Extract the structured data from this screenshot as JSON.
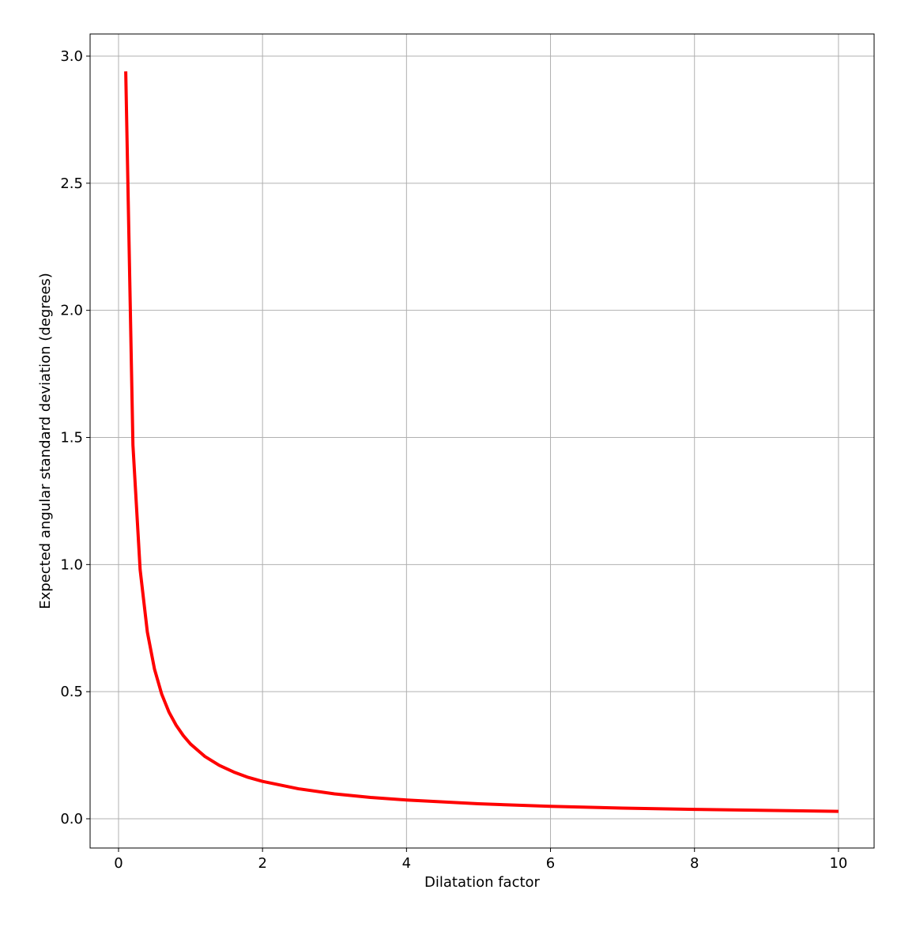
{
  "chart_data": {
    "type": "line",
    "x_label": "Dilatation factor",
    "y_label": "Expected angular standard deviation (degrees)",
    "x": [
      0.1,
      0.2,
      0.3,
      0.4,
      0.5,
      0.6,
      0.7,
      0.8,
      0.9,
      1.0,
      1.2,
      1.4,
      1.6,
      1.8,
      2,
      2.5,
      3,
      3.5,
      4,
      5,
      6,
      7,
      8,
      9,
      10
    ],
    "series": [
      {
        "color": "#ff0000",
        "values": [
          2.94,
          1.47,
          0.98,
          0.735,
          0.588,
          0.49,
          0.42,
          0.368,
          0.327,
          0.294,
          0.245,
          0.21,
          0.184,
          0.163,
          0.147,
          0.118,
          0.098,
          0.084,
          0.074,
          0.059,
          0.049,
          0.042,
          0.037,
          0.033,
          0.029
        ]
      }
    ],
    "xlim": [
      -0.395,
      10.495
    ],
    "ylim": [
      -0.115,
      3.087
    ],
    "xticks": [
      0,
      2,
      4,
      6,
      8,
      10
    ],
    "yticks": [
      {
        "value": 0,
        "label": "0.0"
      },
      {
        "value": 0.5,
        "label": "0.5"
      },
      {
        "value": 1,
        "label": "1.0"
      },
      {
        "value": 1.5,
        "label": "1.5"
      },
      {
        "value": 2,
        "label": "2.0"
      },
      {
        "value": 2.5,
        "label": "2.5"
      },
      {
        "value": 3,
        "label": "3.0"
      }
    ],
    "grid": true
  }
}
